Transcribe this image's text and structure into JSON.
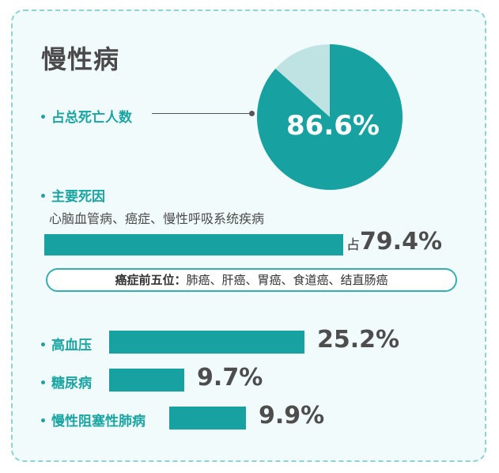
{
  "title": "慢性病",
  "pie": {
    "label": "占总死亡人数",
    "value_label": "86.6%",
    "value": 86.6,
    "color_main": "#17a2a1",
    "color_rest": "#bfe3e2"
  },
  "main_causes": {
    "label": "主要死因",
    "desc": "心脑血管病、癌症、慢性呼吸系统疾病",
    "prefix": "占",
    "value_label": "79.4%",
    "value": 79.4
  },
  "cancer_top5": {
    "label": "癌症前五位：",
    "items": "肺癌、肝癌、胃癌、食道癌、结直肠癌"
  },
  "chart_data": {
    "type": "bar",
    "categories": [
      "高血压",
      "糖尿病",
      "慢性阻塞性肺病"
    ],
    "values": [
      25.2,
      9.7,
      9.9
    ],
    "value_labels": [
      "25.2%",
      "9.7%",
      "9.9%"
    ]
  },
  "colors": {
    "accent": "#17a2a1",
    "text": "#4a4a4a"
  }
}
